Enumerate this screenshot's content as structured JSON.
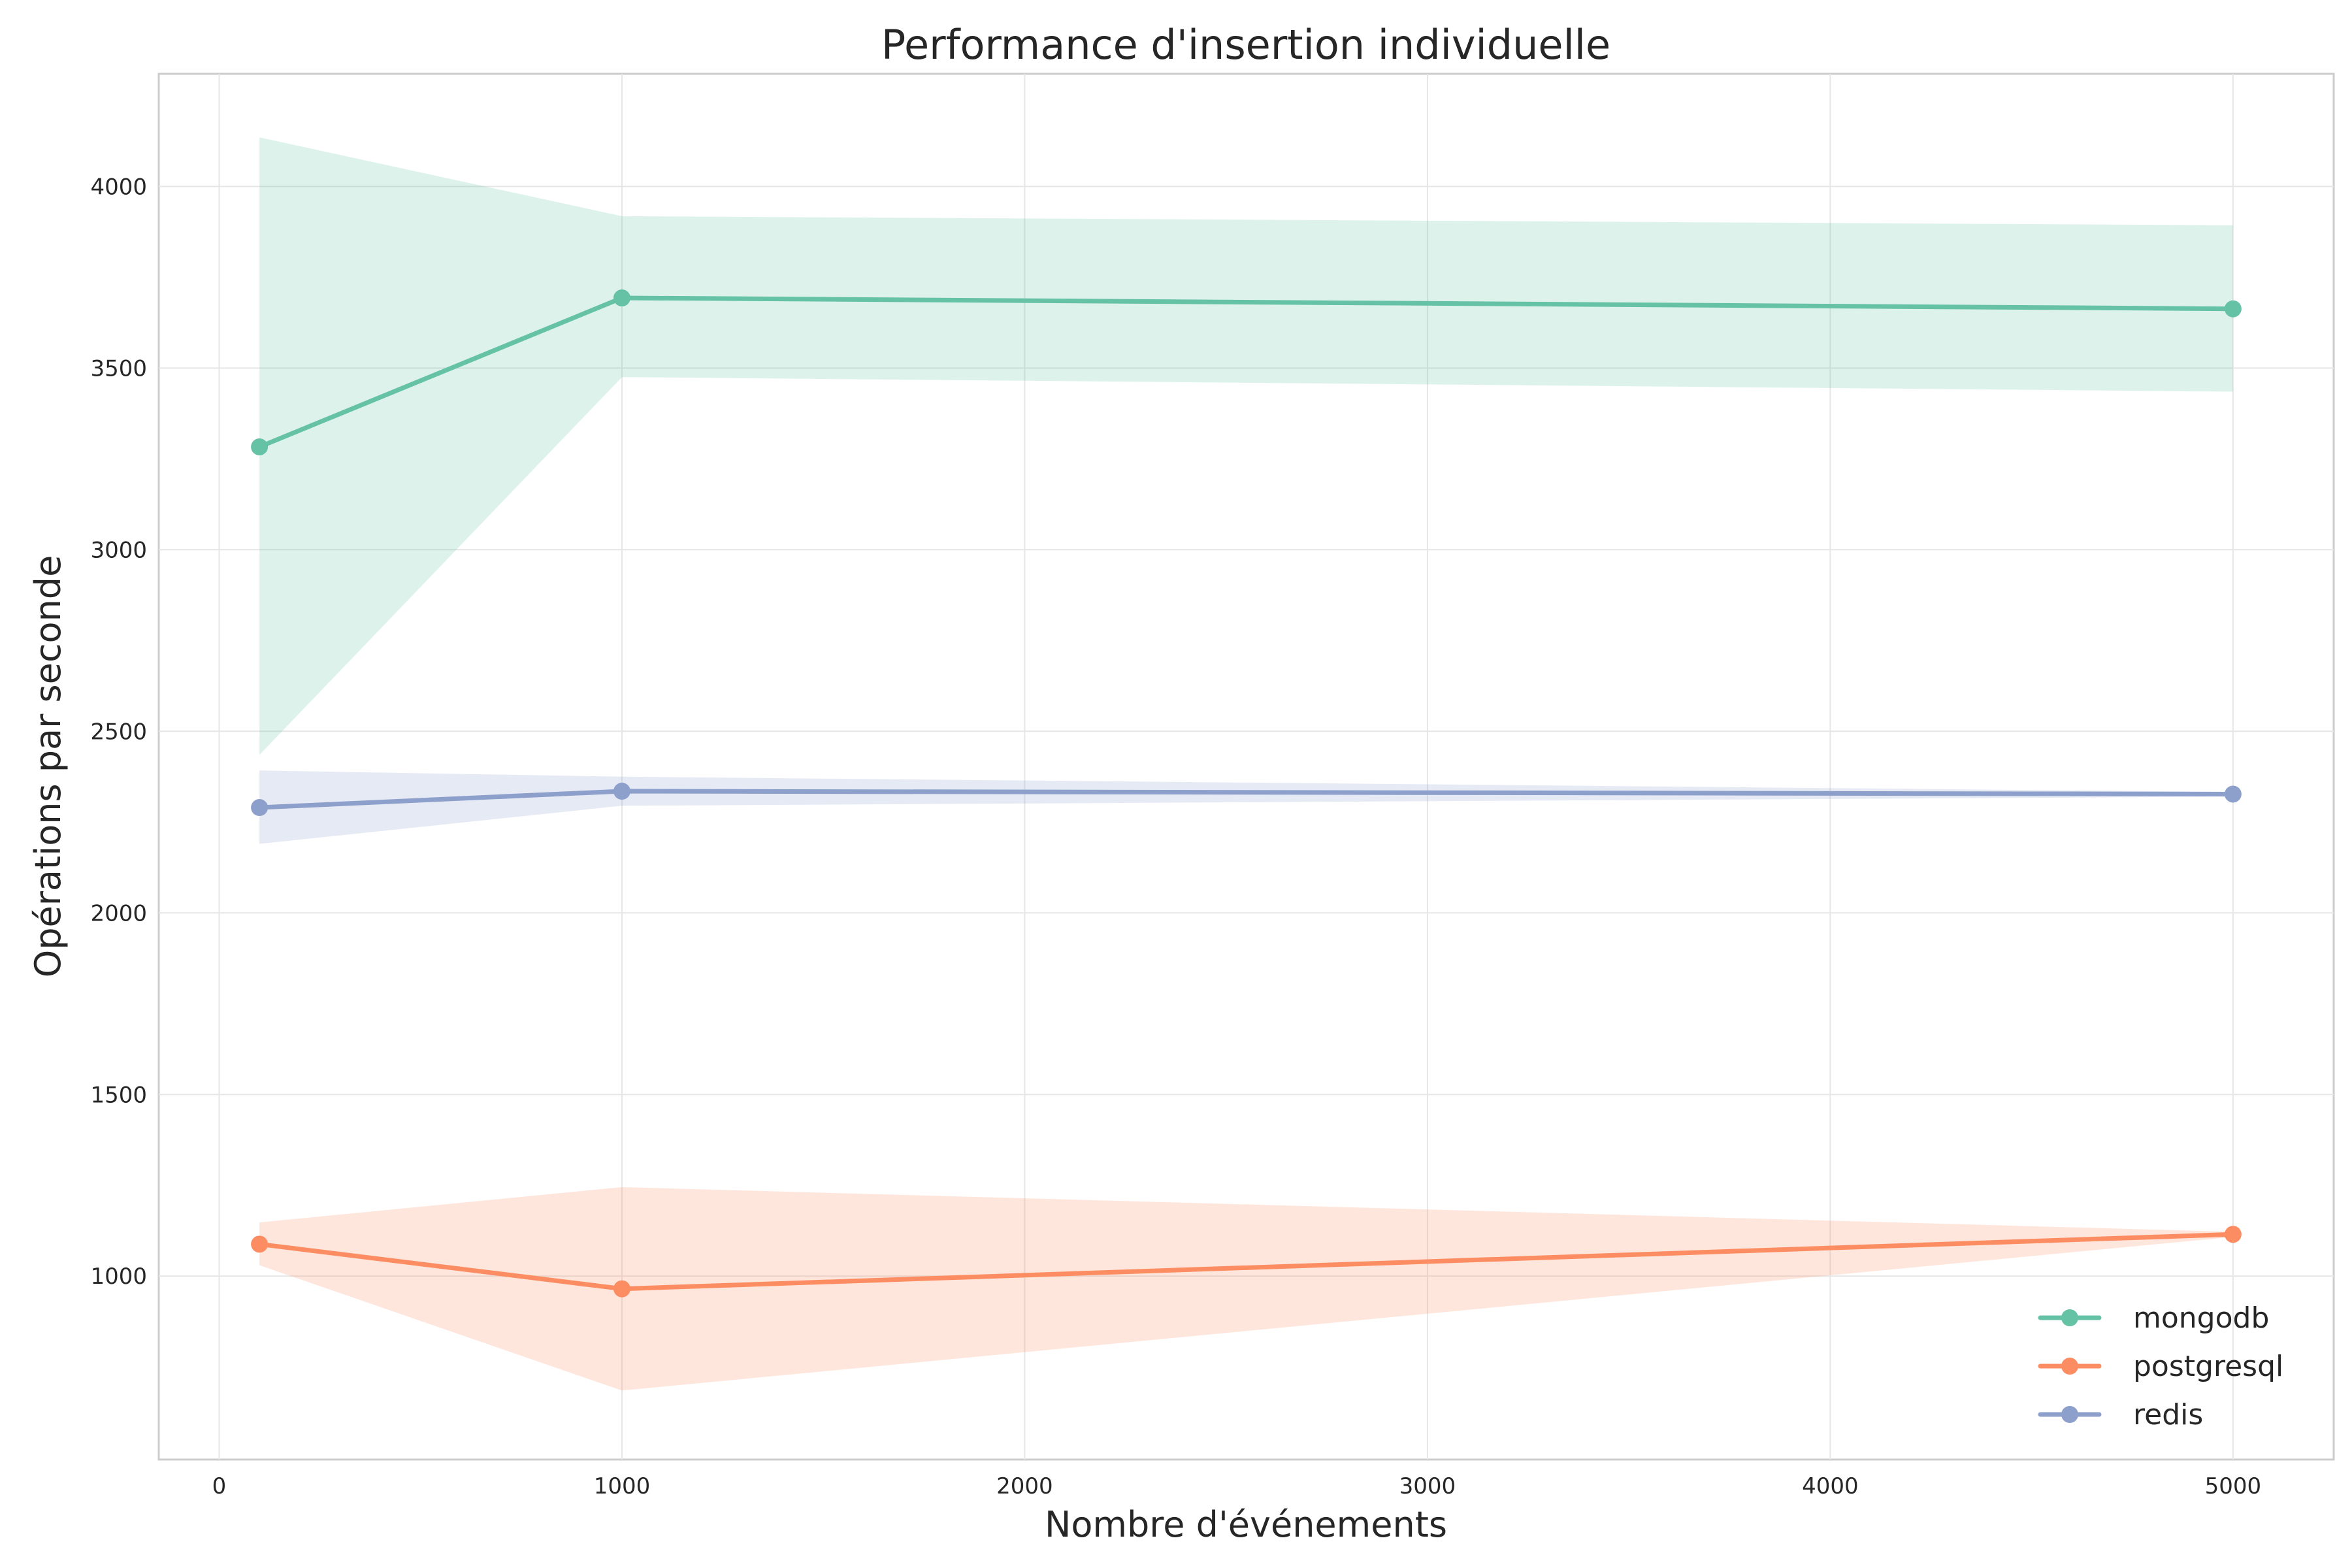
{
  "chart_data": {
    "type": "line",
    "title": "Performance d'insertion individuelle",
    "xlabel": "Nombre d'événements",
    "ylabel": "Opérations par seconde",
    "x": [
      100,
      1000,
      5000
    ],
    "xlim": [
      -150,
      5250
    ],
    "ylim": [
      495,
      4310
    ],
    "xticks": [
      0,
      1000,
      2000,
      3000,
      4000,
      5000
    ],
    "yticks": [
      1000,
      1500,
      2000,
      2500,
      3000,
      3500,
      4000
    ],
    "grid": true,
    "legend_position": "bottom-right",
    "series": [
      {
        "name": "mongodb",
        "color": "#66c2a5",
        "values": [
          3283,
          3693,
          3663
        ],
        "band_lower": [
          2435,
          3475,
          3435
        ],
        "band_upper": [
          4135,
          3918,
          3893
        ]
      },
      {
        "name": "postgresql",
        "color": "#fc8d62",
        "values": [
          1088,
          965,
          1115
        ],
        "band_lower": [
          1030,
          685,
          1108
        ],
        "band_upper": [
          1148,
          1245,
          1122
        ]
      },
      {
        "name": "redis",
        "color": "#8da0cb",
        "values": [
          2290,
          2335,
          2327
        ],
        "band_lower": [
          2190,
          2295,
          2320
        ],
        "band_upper": [
          2392,
          2375,
          2333
        ]
      }
    ]
  }
}
